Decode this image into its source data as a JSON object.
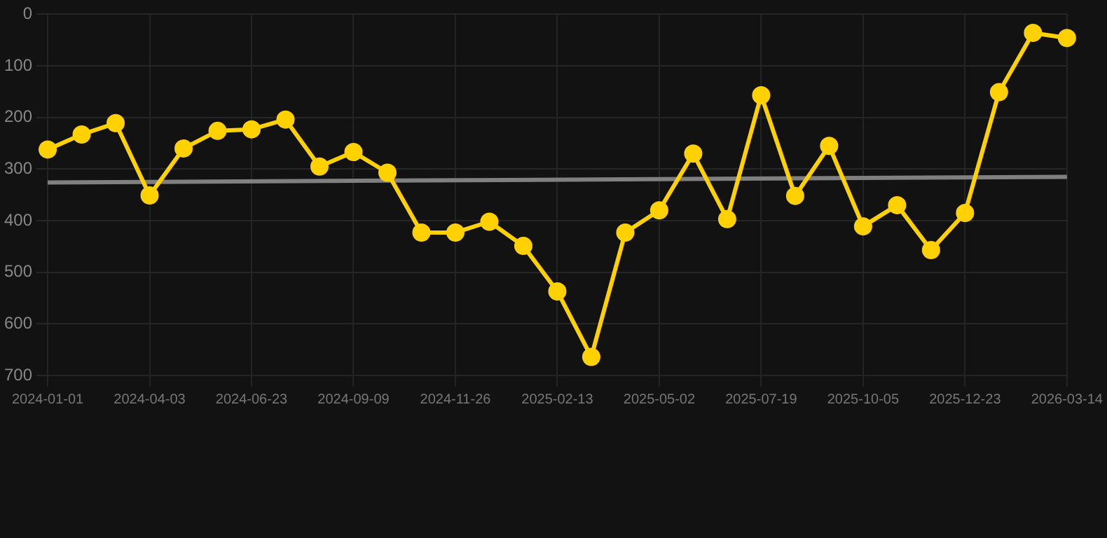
{
  "chart_data": {
    "type": "line",
    "categories": [
      "2024-01-01",
      null,
      null,
      "2024-04-03",
      null,
      null,
      "2024-06-23",
      null,
      null,
      "2024-09-09",
      null,
      null,
      "2024-11-26",
      null,
      null,
      "2025-02-13",
      null,
      null,
      "2025-05-02",
      null,
      null,
      "2025-07-19",
      null,
      null,
      "2025-10-05",
      null,
      null,
      "2025-12-23",
      null,
      null,
      "2026-03-14"
    ],
    "series": [
      {
        "color": "#ffd100",
        "marker": "circle",
        "values": [
          262,
          233,
          211,
          351,
          260,
          226,
          223,
          204,
          295,
          267,
          307,
          423,
          423,
          402,
          449,
          537,
          664,
          423,
          380,
          270,
          397,
          157,
          352,
          255,
          411,
          370,
          457,
          385,
          151,
          36,
          46
        ]
      },
      {
        "type": "line",
        "color": "#808080",
        "marker": "none",
        "values": [
          326,
          null,
          null,
          null,
          null,
          null,
          null,
          null,
          null,
          null,
          null,
          null,
          null,
          null,
          null,
          null,
          null,
          null,
          null,
          null,
          null,
          null,
          null,
          null,
          null,
          null,
          null,
          null,
          null,
          null,
          315
        ]
      }
    ],
    "ylim": [
      700,
      0
    ],
    "yticks": [
      0,
      100,
      200,
      300,
      400,
      500,
      600,
      700
    ],
    "grid": true,
    "legend": false
  }
}
